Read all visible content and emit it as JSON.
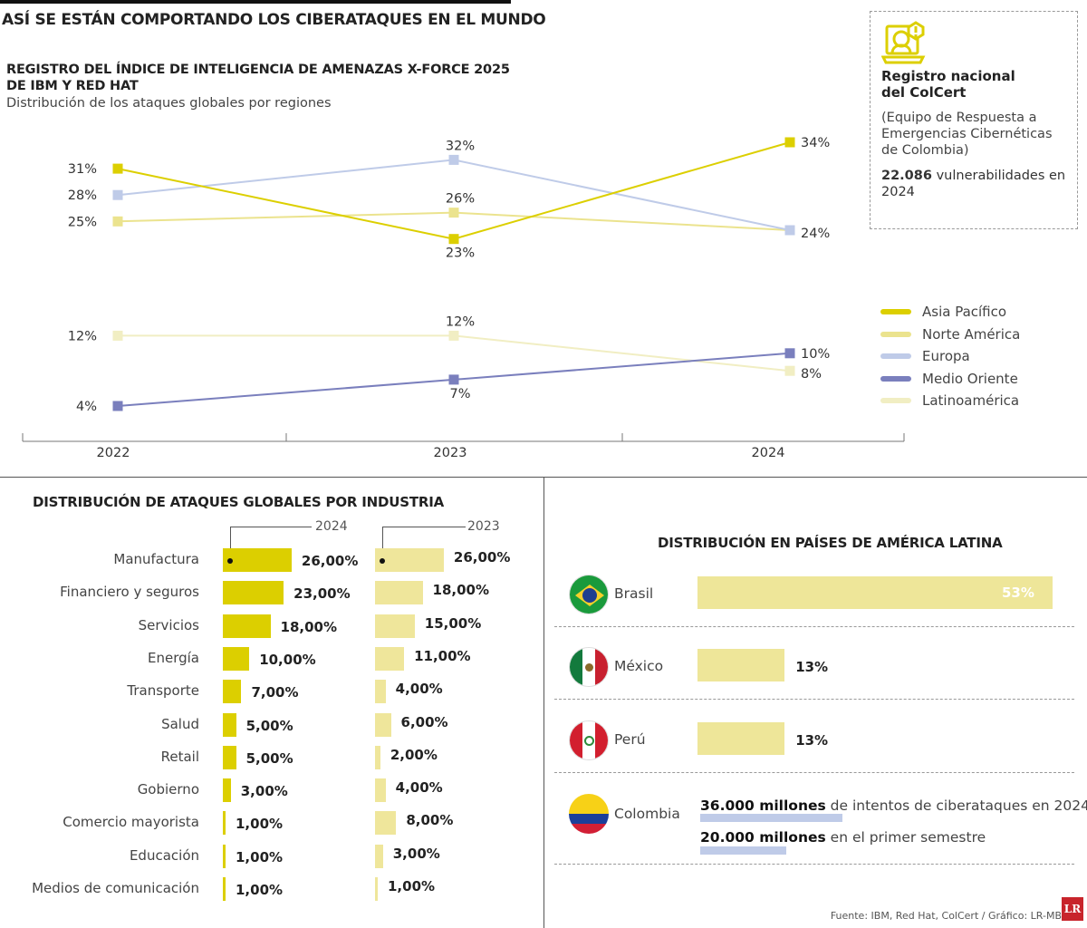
{
  "header": {
    "title": "ASÍ SE ESTÁN COMPORTANDO LOS CIBERATAQUES EN EL MUNDO"
  },
  "colors": {
    "asia": "#dccf00",
    "norte": "#ebe38e",
    "europa": "#bfcbe8",
    "medio": "#7a7fbd",
    "latam": "#f1eec3",
    "bar2024": "#dccf00",
    "bar2023": "#efe69b",
    "latam_bar": "#eee699",
    "colombia_bar": "#bfcbe8"
  },
  "chart_data": [
    {
      "type": "line",
      "title": "REGISTRO DEL ÍNDICE DE INTELIGENCIA DE AMENAZAS X-FORCE 2025 DE IBM Y RED HAT",
      "subtitle": "Distribución de los ataques globales por regiones",
      "categories": [
        "2022",
        "2023",
        "2024"
      ],
      "legend_position": "right",
      "series": [
        {
          "name": "Asia Pacífico",
          "values": [
            31,
            23,
            34
          ],
          "labels": [
            "31%",
            "23%",
            "34%"
          ]
        },
        {
          "name": "Norte América",
          "values": [
            25,
            26,
            24
          ],
          "labels": [
            "25%",
            "26%",
            "24%"
          ]
        },
        {
          "name": "Europa",
          "values": [
            28,
            32,
            24
          ],
          "labels": [
            "28%",
            "32%",
            ""
          ]
        },
        {
          "name": "Medio Oriente",
          "values": [
            4,
            7,
            10
          ],
          "labels": [
            "4%",
            "7%",
            "10%"
          ]
        },
        {
          "name": "Latinoamérica",
          "values": [
            12,
            12,
            8
          ],
          "labels": [
            "12%",
            "12%",
            "8%"
          ]
        }
      ]
    },
    {
      "type": "bar",
      "title": "DISTRIBUCIÓN DE ATAQUES GLOBALES POR INDUSTRIA",
      "categories": [
        "Manufactura",
        "Financiero y seguros",
        "Servicios",
        "Energía",
        "Transporte",
        "Salud",
        "Retail",
        "Gobierno",
        "Comercio mayorista",
        "Educación",
        "Medios de comunicación"
      ],
      "series": [
        {
          "name": "2024",
          "values": [
            26,
            23,
            18,
            10,
            7,
            5,
            5,
            3,
            1,
            1,
            1
          ],
          "labels": [
            "26,00%",
            "23,00%",
            "18,00%",
            "10,00%",
            "7,00%",
            "5,00%",
            "5,00%",
            "3,00%",
            "1,00%",
            "1,00%",
            "1,00%"
          ]
        },
        {
          "name": "2023",
          "values": [
            26,
            18,
            15,
            11,
            4,
            6,
            2,
            4,
            8,
            3,
            1
          ],
          "labels": [
            "26,00%",
            "18,00%",
            "15,00%",
            "11,00%",
            "4,00%",
            "6,00%",
            "2,00%",
            "4,00%",
            "8,00%",
            "3,00%",
            "1,00%"
          ]
        }
      ]
    },
    {
      "type": "bar",
      "title": "DISTRIBUCIÓN EN PAÍSES DE AMÉRICA LATINA",
      "categories": [
        "Brasil",
        "México",
        "Perú"
      ],
      "values": [
        53,
        13,
        13
      ],
      "labels": [
        "53%",
        "13%",
        "13%"
      ]
    }
  ],
  "colombia": {
    "name": "Colombia",
    "line1_bold": "36.000 millones",
    "line1_rest": " de intentos de ciberataques en 2024",
    "line2_bold": "20.000 millones",
    "line2_rest": " en el primer semestre"
  },
  "colcert": {
    "title1": "Registro nacional",
    "title2": "del ColCert",
    "desc": "(Equipo de Respuesta a Emergencias Cibernéticas de Colombia)",
    "count": "22.086",
    "count_rest": " vulnerabilidades en 2024",
    "icon": "hacker-laptop-icon"
  },
  "footer": {
    "source": "Fuente: IBM, Red Hat, ColCert / Gráfico: LR-MB",
    "logo": "LR"
  }
}
